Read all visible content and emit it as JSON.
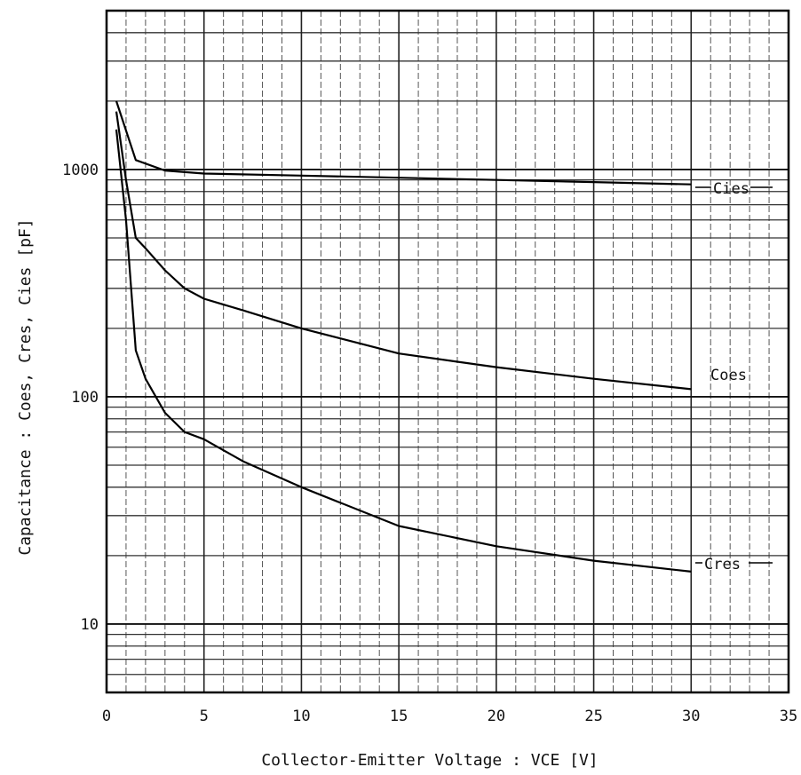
{
  "chart_data": {
    "type": "line",
    "xlabel": "Collector-Emitter Voltage  :  VCE  [V]",
    "ylabel": "Capacitance :  Coes, Cres, Cies  [pF]",
    "xlim": [
      0,
      35
    ],
    "ylim": [
      5,
      5000
    ],
    "yscale": "log",
    "grid": true,
    "x_ticks": [
      "0",
      "5",
      "10",
      "15",
      "20",
      "25",
      "30",
      "35"
    ],
    "y_ticks": [
      "10",
      "100",
      "1000"
    ],
    "series": [
      {
        "name": "Cies",
        "x": [
          0.5,
          1.5,
          3,
          5,
          10,
          15,
          20,
          25,
          30
        ],
        "y": [
          2000,
          1100,
          990,
          960,
          940,
          920,
          900,
          880,
          860
        ]
      },
      {
        "name": "Coes",
        "x": [
          0.5,
          1,
          1.5,
          2,
          3,
          4,
          5,
          7,
          10,
          15,
          20,
          25,
          30
        ],
        "y": [
          1800,
          900,
          500,
          450,
          360,
          300,
          270,
          240,
          200,
          155,
          135,
          120,
          108
        ]
      },
      {
        "name": "Cres",
        "x": [
          0.5,
          1,
          1.5,
          2,
          3,
          4,
          5,
          7,
          10,
          15,
          20,
          25,
          30
        ],
        "y": [
          1500,
          600,
          160,
          120,
          85,
          70,
          65,
          52,
          40,
          27,
          22,
          19,
          17
        ]
      }
    ]
  }
}
